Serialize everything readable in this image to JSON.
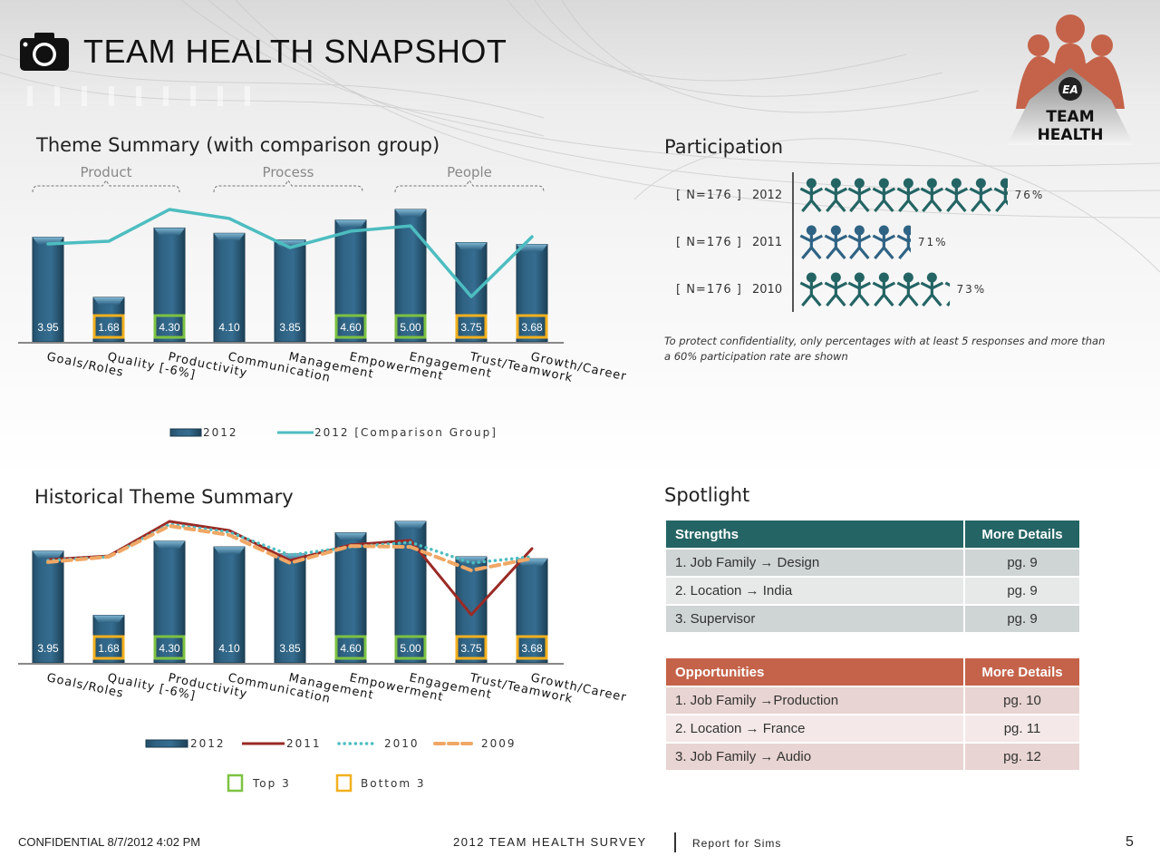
{
  "header": {
    "title": "TEAM HEALTH SNAPSHOT",
    "icon": "camera-icon"
  },
  "logo": {
    "line1": "TEAM",
    "line2": "HEALTH",
    "badge": "EA",
    "color": "#c4634a"
  },
  "colors": {
    "bar": "#2f6384",
    "comparison": "#4dbdc0",
    "y2011": "#9a2a25",
    "y2010": "#4dbdc0",
    "y2009": "#f0a765",
    "top3": "#7dc242",
    "bottom3": "#f2b01e",
    "strengths_header": "#246464",
    "opportunities_header": "#c4634a"
  },
  "sections": {
    "theme_summary": "Theme Summary (with comparison group)",
    "historical": "Historical Theme Summary",
    "participation": "Participation",
    "spotlight": "Spotlight"
  },
  "chart_data": [
    {
      "type": "bar",
      "title": "Theme Summary (with comparison group)",
      "groups": [
        {
          "label": "Product",
          "from": 0,
          "to": 2
        },
        {
          "label": "Process",
          "from": 3,
          "to": 5
        },
        {
          "label": "People",
          "from": 6,
          "to": 8
        }
      ],
      "categories": [
        "Goals/Roles",
        "Quality [-6%]",
        "Productivity",
        "Communication",
        "Management",
        "Empowerment",
        "Engagement",
        "Trust/Teamwork",
        "Growth/Career"
      ],
      "series": [
        {
          "name": "2012",
          "kind": "bar",
          "values": [
            3.95,
            1.68,
            4.3,
            4.1,
            3.85,
            4.6,
            5.0,
            3.75,
            3.68
          ]
        },
        {
          "name": "2012 [Comparison Group]",
          "kind": "line",
          "values": [
            3.7,
            3.8,
            5.0,
            4.66,
            3.56,
            4.18,
            4.38,
            1.71,
            3.97
          ]
        }
      ],
      "highlights": [
        "none",
        "bottom",
        "top",
        "none",
        "none",
        "top",
        "top",
        "bottom",
        "bottom"
      ],
      "value_labels": [
        "3.95",
        "1.68",
        "4.30",
        "4.10",
        "3.85",
        "4.60",
        "5.00",
        "3.75",
        "3.68"
      ],
      "ylim": [
        0,
        5
      ],
      "legend": [
        "2012",
        "2012 [Comparison Group]"
      ],
      "legend_position": "bottom",
      "grid": false
    },
    {
      "type": "bar",
      "title": "Historical Theme Summary",
      "categories": [
        "Goals/Roles",
        "Quality [-6%]",
        "Productivity",
        "Communication",
        "Management",
        "Empowerment",
        "Engagement",
        "Trust/Teamwork",
        "Growth/Career"
      ],
      "series": [
        {
          "name": "2012",
          "kind": "bar",
          "values": [
            3.95,
            1.68,
            4.3,
            4.1,
            3.85,
            4.6,
            5.0,
            3.75,
            3.68
          ]
        },
        {
          "name": "2011",
          "kind": "line",
          "style": "solid",
          "values": [
            3.65,
            3.78,
            5.0,
            4.68,
            3.62,
            4.17,
            4.33,
            1.7,
            4.04
          ]
        },
        {
          "name": "2010",
          "kind": "line",
          "style": "dotted",
          "values": [
            3.62,
            3.75,
            4.9,
            4.62,
            3.81,
            4.1,
            4.26,
            3.53,
            3.75
          ]
        },
        {
          "name": "2009",
          "kind": "line",
          "style": "dashed",
          "values": [
            3.56,
            3.75,
            4.84,
            4.52,
            3.53,
            4.13,
            4.1,
            3.27,
            3.69
          ]
        }
      ],
      "highlights": [
        "none",
        "bottom",
        "top",
        "none",
        "none",
        "top",
        "top",
        "bottom",
        "bottom"
      ],
      "value_labels": [
        "3.95",
        "1.68",
        "4.30",
        "4.10",
        "3.85",
        "4.60",
        "5.00",
        "3.75",
        "3.68"
      ],
      "ylim": [
        0,
        5
      ],
      "legend": [
        "2012",
        "2011",
        "2010",
        "2009"
      ],
      "highlight_legend": [
        "Top 3",
        "Bottom 3"
      ],
      "legend_position": "bottom",
      "grid": false
    }
  ],
  "participation": {
    "rows": [
      {
        "n": "[ N=176 ]",
        "year": "2012",
        "pct": "76%",
        "figures": 8.6,
        "color": "#246464"
      },
      {
        "n": "[ N=176 ]",
        "year": "2011",
        "pct": "71%",
        "figures": 4.6,
        "color": "#2f6384"
      },
      {
        "n": "[ N=176 ]",
        "year": "2010",
        "pct": "73%",
        "figures": 6.2,
        "color": "#246464"
      }
    ],
    "note": "To protect confidentiality, only percentages with at least 5 responses and more than a 60% participation rate are shown"
  },
  "spotlight": {
    "strengths": {
      "header": "Strengths",
      "details_header": "More Details",
      "rows": [
        {
          "item": "1. Job Family → Design",
          "page": "pg. 9"
        },
        {
          "item": "2. Location → India",
          "page": "pg. 9"
        },
        {
          "item": "3. Supervisor",
          "page": "pg. 9"
        }
      ]
    },
    "opportunities": {
      "header": "Opportunities",
      "details_header": "More Details",
      "rows": [
        {
          "item": "1. Job Family →Production",
          "page": "pg. 10"
        },
        {
          "item": "2. Location → France",
          "page": "pg. 11"
        },
        {
          "item": "3. Job Family → Audio",
          "page": "pg. 12"
        }
      ]
    }
  },
  "footer": {
    "confidential": "CONFIDENTIAL  8/7/2012   4:02 PM",
    "survey": "2012 TEAM HEALTH SURVEY",
    "report": "Report for Sims",
    "page": "5"
  }
}
